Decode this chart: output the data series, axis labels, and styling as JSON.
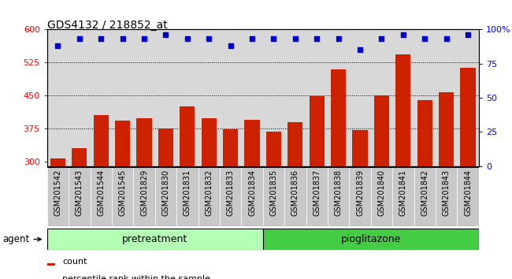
{
  "title": "GDS4132 / 218852_at",
  "categories": [
    "GSM201542",
    "GSM201543",
    "GSM201544",
    "GSM201545",
    "GSM201829",
    "GSM201830",
    "GSM201831",
    "GSM201832",
    "GSM201833",
    "GSM201834",
    "GSM201835",
    "GSM201836",
    "GSM201837",
    "GSM201838",
    "GSM201839",
    "GSM201840",
    "GSM201841",
    "GSM201842",
    "GSM201843",
    "GSM201844"
  ],
  "bar_values": [
    307,
    330,
    405,
    393,
    398,
    375,
    425,
    398,
    373,
    395,
    368,
    390,
    448,
    510,
    372,
    450,
    543,
    440,
    458,
    512
  ],
  "dot_values": [
    88,
    93,
    93,
    93,
    93,
    96,
    93,
    93,
    88,
    93,
    93,
    93,
    93,
    93,
    85,
    93,
    96,
    93,
    93,
    96
  ],
  "bar_color": "#cc2200",
  "dot_color": "#0000cc",
  "ylim_left": [
    290,
    600
  ],
  "ylim_right": [
    0,
    100
  ],
  "yticks_left": [
    300,
    375,
    450,
    525,
    600
  ],
  "yticks_right": [
    0,
    25,
    50,
    75,
    100
  ],
  "grid_values": [
    375,
    450,
    525
  ],
  "agent_label": "agent",
  "groups": [
    {
      "label": "pretreatment",
      "start": 0,
      "end": 10,
      "color": "#b3ffb3"
    },
    {
      "label": "pioglitazone",
      "start": 10,
      "end": 20,
      "color": "#44cc44"
    }
  ],
  "legend_bar_label": "count",
  "legend_dot_label": "percentile rank within the sample",
  "bg_color": "#d8d8d8",
  "xticklabel_bg": "#d0d0d0"
}
